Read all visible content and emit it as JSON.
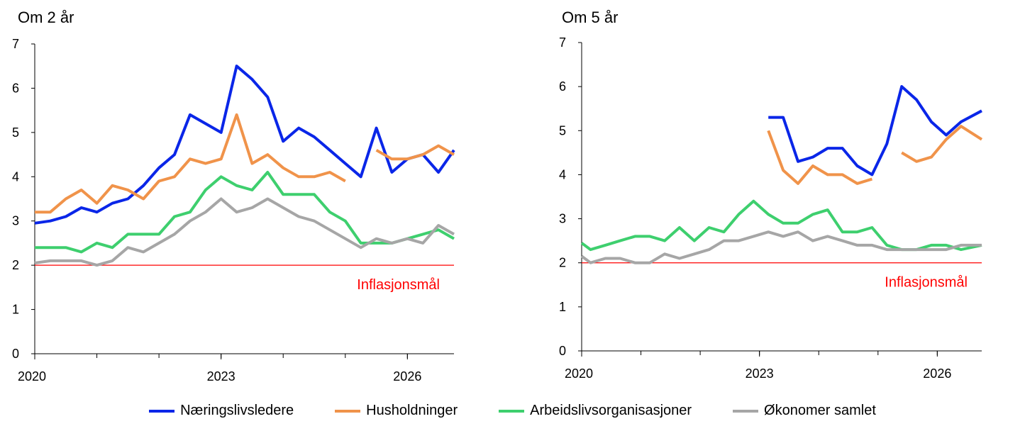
{
  "colors": {
    "Næringslivsledere": "#0a26e8",
    "Husholdninger": "#f0934a",
    "Arbeidslivsorganisasjoner": "#3ecf6e",
    "Økonomer samlet": "#a6a6a6",
    "target": "#ff0000"
  },
  "legend": [
    "Næringslivsledere",
    "Husholdninger",
    "Arbeidslivsorganisasjoner",
    "Økonomer samlet"
  ],
  "chart_data": [
    {
      "type": "line",
      "title": "Om 2 år",
      "xlim": [
        2020,
        2026.75
      ],
      "ylim": [
        0,
        7
      ],
      "xticks": [
        2020,
        2023,
        2026
      ],
      "yticks": [
        0,
        1,
        2,
        3,
        4,
        5,
        6,
        7
      ],
      "target": {
        "value": 2,
        "label": "Inflasjonsmål"
      },
      "series": [
        {
          "name": "Næringslivsledere",
          "points": [
            [
              2020.0,
              2.95
            ],
            [
              2020.25,
              3.0
            ],
            [
              2020.5,
              3.1
            ],
            [
              2020.75,
              3.3
            ],
            [
              2021.0,
              3.2
            ],
            [
              2021.25,
              3.4
            ],
            [
              2021.5,
              3.5
            ],
            [
              2021.75,
              3.8
            ],
            [
              2022.0,
              4.2
            ],
            [
              2022.25,
              4.5
            ],
            [
              2022.5,
              5.4
            ],
            [
              2022.75,
              5.2
            ],
            [
              2023.0,
              5.0
            ],
            [
              2023.25,
              6.5
            ],
            [
              2023.5,
              6.2
            ],
            [
              2023.75,
              5.8
            ],
            [
              2024.0,
              4.8
            ],
            [
              2024.25,
              5.1
            ],
            [
              2024.5,
              4.9
            ],
            [
              2024.75,
              4.6
            ],
            [
              2025.0,
              4.3
            ],
            [
              2025.25,
              4.0
            ],
            [
              2025.5,
              5.1
            ],
            [
              2025.75,
              4.1
            ],
            [
              2026.0,
              4.4
            ],
            [
              2026.25,
              4.5
            ],
            [
              2026.5,
              4.1
            ],
            [
              2026.75,
              4.6
            ]
          ]
        },
        {
          "name": "Husholdninger",
          "points": [
            [
              2020.0,
              3.2
            ],
            [
              2020.25,
              3.2
            ],
            [
              2020.5,
              3.5
            ],
            [
              2020.75,
              3.7
            ],
            [
              2021.0,
              3.4
            ],
            [
              2021.25,
              3.8
            ],
            [
              2021.5,
              3.7
            ],
            [
              2021.75,
              3.5
            ],
            [
              2022.0,
              3.9
            ],
            [
              2022.25,
              4.0
            ],
            [
              2022.5,
              4.4
            ],
            [
              2022.75,
              4.3
            ],
            [
              2023.0,
              4.4
            ],
            [
              2023.25,
              5.4
            ],
            [
              2023.5,
              4.3
            ],
            [
              2023.75,
              4.5
            ],
            [
              2024.0,
              4.2
            ],
            [
              2024.25,
              4.0
            ],
            [
              2024.5,
              4.0
            ],
            [
              2024.75,
              4.1
            ],
            [
              2025.0,
              3.9
            ],
            null,
            [
              2025.5,
              4.6
            ],
            [
              2025.75,
              4.4
            ],
            [
              2026.0,
              4.4
            ],
            [
              2026.25,
              4.5
            ],
            [
              2026.5,
              4.7
            ],
            [
              2026.75,
              4.5
            ]
          ]
        },
        {
          "name": "Arbeidslivsorganisasjoner",
          "points": [
            [
              2020.0,
              2.4
            ],
            [
              2020.25,
              2.4
            ],
            [
              2020.5,
              2.4
            ],
            [
              2020.75,
              2.3
            ],
            [
              2021.0,
              2.5
            ],
            [
              2021.25,
              2.4
            ],
            [
              2021.5,
              2.7
            ],
            [
              2021.75,
              2.7
            ],
            [
              2022.0,
              2.7
            ],
            [
              2022.25,
              3.1
            ],
            [
              2022.5,
              3.2
            ],
            [
              2022.75,
              3.7
            ],
            [
              2023.0,
              4.0
            ],
            [
              2023.25,
              3.8
            ],
            [
              2023.5,
              3.7
            ],
            [
              2023.75,
              4.1
            ],
            [
              2024.0,
              3.6
            ],
            [
              2024.25,
              3.6
            ],
            [
              2024.5,
              3.6
            ],
            [
              2024.75,
              3.2
            ],
            [
              2025.0,
              3.0
            ],
            [
              2025.25,
              2.5
            ],
            [
              2025.5,
              2.5
            ],
            [
              2025.75,
              2.5
            ],
            [
              2026.0,
              2.6
            ],
            [
              2026.25,
              2.7
            ],
            [
              2026.5,
              2.8
            ],
            [
              2026.75,
              2.6
            ]
          ]
        },
        {
          "name": "Økonomer samlet",
          "points": [
            [
              2020.0,
              2.05
            ],
            [
              2020.25,
              2.1
            ],
            [
              2020.5,
              2.1
            ],
            [
              2020.75,
              2.1
            ],
            [
              2021.0,
              2.0
            ],
            [
              2021.25,
              2.1
            ],
            [
              2021.5,
              2.4
            ],
            [
              2021.75,
              2.3
            ],
            [
              2022.0,
              2.5
            ],
            [
              2022.25,
              2.7
            ],
            [
              2022.5,
              3.0
            ],
            [
              2022.75,
              3.2
            ],
            [
              2023.0,
              3.5
            ],
            [
              2023.25,
              3.2
            ],
            [
              2023.5,
              3.3
            ],
            [
              2023.75,
              3.5
            ],
            [
              2024.0,
              3.3
            ],
            [
              2024.25,
              3.1
            ],
            [
              2024.5,
              3.0
            ],
            [
              2024.75,
              2.8
            ],
            [
              2025.0,
              2.6
            ],
            [
              2025.25,
              2.4
            ],
            [
              2025.5,
              2.6
            ],
            [
              2025.75,
              2.5
            ],
            [
              2026.0,
              2.6
            ],
            [
              2026.25,
              2.5
            ],
            [
              2026.5,
              2.9
            ],
            [
              2026.75,
              2.7
            ]
          ]
        }
      ]
    },
    {
      "type": "line",
      "title": "Om 5 år",
      "xlim": [
        2020,
        2026.75
      ],
      "ylim": [
        0,
        7
      ],
      "xticks": [
        2020,
        2023,
        2026
      ],
      "yticks": [
        0,
        1,
        2,
        3,
        4,
        5,
        6,
        7
      ],
      "target": {
        "value": 2,
        "label": "Inflasjonsmål"
      },
      "series": [
        {
          "name": "Næringslivsledere",
          "points": [
            [
              2023.15,
              5.3
            ],
            [
              2023.4,
              5.3
            ],
            [
              2023.65,
              4.3
            ],
            [
              2023.9,
              4.4
            ],
            [
              2024.15,
              4.6
            ],
            [
              2024.4,
              4.6
            ],
            [
              2024.65,
              4.2
            ],
            [
              2024.9,
              4.0
            ],
            [
              2025.15,
              4.7
            ],
            [
              2025.4,
              6.0
            ],
            [
              2025.65,
              5.7
            ],
            [
              2025.9,
              5.2
            ],
            [
              2026.15,
              4.9
            ],
            [
              2026.4,
              5.2
            ],
            [
              2026.75,
              5.45
            ]
          ]
        },
        {
          "name": "Husholdninger",
          "points": [
            [
              2023.15,
              5.0
            ],
            [
              2023.4,
              4.1
            ],
            [
              2023.65,
              3.8
            ],
            [
              2023.9,
              4.2
            ],
            [
              2024.15,
              4.0
            ],
            [
              2024.4,
              4.0
            ],
            [
              2024.65,
              3.8
            ],
            [
              2024.9,
              3.9
            ],
            null,
            [
              2025.4,
              4.5
            ],
            [
              2025.65,
              4.3
            ],
            [
              2025.9,
              4.4
            ],
            [
              2026.15,
              4.8
            ],
            [
              2026.4,
              5.1
            ],
            [
              2026.75,
              4.8
            ]
          ]
        },
        {
          "name": "Arbeidslivsorganisasjoner",
          "points": [
            [
              2020.0,
              2.45
            ],
            [
              2020.15,
              2.3
            ],
            [
              2020.4,
              2.4
            ],
            [
              2020.65,
              2.5
            ],
            [
              2020.9,
              2.6
            ],
            [
              2021.15,
              2.6
            ],
            [
              2021.4,
              2.5
            ],
            [
              2021.65,
              2.8
            ],
            [
              2021.9,
              2.5
            ],
            [
              2022.15,
              2.8
            ],
            [
              2022.4,
              2.7
            ],
            [
              2022.65,
              3.1
            ],
            [
              2022.9,
              3.4
            ],
            [
              2023.15,
              3.1
            ],
            [
              2023.4,
              2.9
            ],
            [
              2023.65,
              2.9
            ],
            [
              2023.9,
              3.1
            ],
            [
              2024.15,
              3.2
            ],
            [
              2024.4,
              2.7
            ],
            [
              2024.65,
              2.7
            ],
            [
              2024.9,
              2.8
            ],
            [
              2025.15,
              2.4
            ],
            [
              2025.4,
              2.3
            ],
            [
              2025.65,
              2.3
            ],
            [
              2025.9,
              2.4
            ],
            [
              2026.15,
              2.4
            ],
            [
              2026.4,
              2.3
            ],
            [
              2026.75,
              2.4
            ]
          ]
        },
        {
          "name": "Økonomer samlet",
          "points": [
            [
              2020.0,
              2.15
            ],
            [
              2020.15,
              2.0
            ],
            [
              2020.4,
              2.1
            ],
            [
              2020.65,
              2.1
            ],
            [
              2020.9,
              2.0
            ],
            [
              2021.15,
              2.0
            ],
            [
              2021.4,
              2.2
            ],
            [
              2021.65,
              2.1
            ],
            [
              2021.9,
              2.2
            ],
            [
              2022.15,
              2.3
            ],
            [
              2022.4,
              2.5
            ],
            [
              2022.65,
              2.5
            ],
            [
              2022.9,
              2.6
            ],
            [
              2023.15,
              2.7
            ],
            [
              2023.4,
              2.6
            ],
            [
              2023.65,
              2.7
            ],
            [
              2023.9,
              2.5
            ],
            [
              2024.15,
              2.6
            ],
            [
              2024.4,
              2.5
            ],
            [
              2024.65,
              2.4
            ],
            [
              2024.9,
              2.4
            ],
            [
              2025.15,
              2.3
            ],
            [
              2025.4,
              2.3
            ],
            [
              2025.65,
              2.3
            ],
            [
              2025.9,
              2.3
            ],
            [
              2026.15,
              2.3
            ],
            [
              2026.4,
              2.4
            ],
            [
              2026.75,
              2.4
            ]
          ]
        }
      ]
    }
  ]
}
